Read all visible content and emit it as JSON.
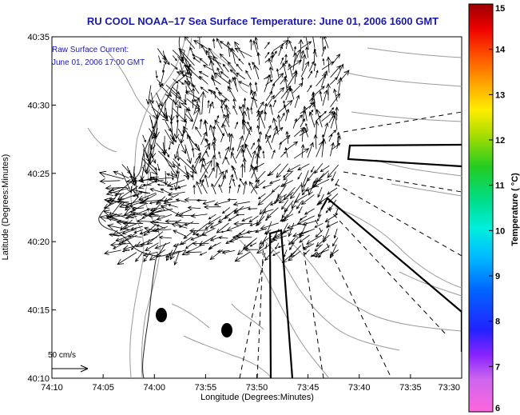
{
  "title": "RU COOL  NOAA–17  Sea Surface Temperature:  June 01, 2006 1600 GMT",
  "current_note": {
    "line1": "Raw Surface Current:",
    "line2": "June 01, 2006 17:00 GMT"
  },
  "scale_label": "50 cm/s",
  "axes": {
    "xlabel": "Longitude (Degrees:Minutes)",
    "ylabel": "Latitude (Degrees:Minutes)",
    "x_ticks": [
      "74:10",
      "74:05",
      "74:00",
      "73:55",
      "73:50",
      "73:45",
      "73:40",
      "73:35",
      "73:30"
    ],
    "y_ticks": [
      "40:35",
      "40:30",
      "40:25",
      "40:20",
      "40:15",
      "40:10"
    ]
  },
  "colorbar": {
    "label": "Temperature ( °C)",
    "ticks": [
      "15",
      "14",
      "13",
      "12",
      "11",
      "10",
      "9",
      "8",
      "7",
      "6"
    ],
    "range": [
      6,
      15
    ]
  },
  "colors": {
    "title": "#1a1aa8",
    "contour": "#9a9a9a",
    "vector": "#000000"
  }
}
